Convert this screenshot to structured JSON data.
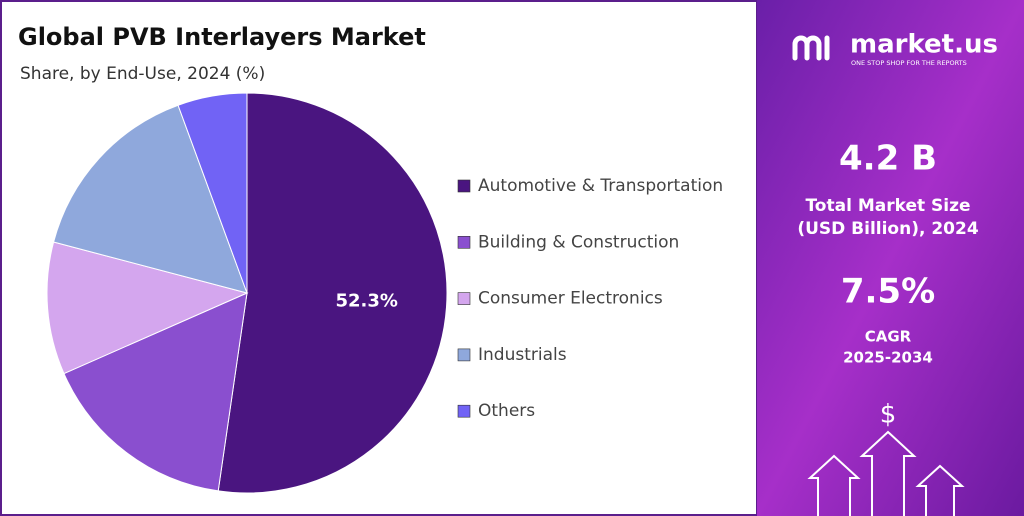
{
  "chart_data": {
    "type": "pie",
    "title": "Global PVB Interlayers Market",
    "subtitle": "Share, by End-Use, 2024 (%)",
    "categories": [
      "Automotive & Transportation",
      "Building & Construction",
      "Consumer Electronics",
      "Industrials",
      "Others"
    ],
    "values": [
      52.3,
      16.1,
      10.7,
      15.3,
      5.6
    ],
    "value_labels": [
      "52.3%",
      null,
      null,
      null,
      null
    ],
    "colors": [
      "#4a1580",
      "#8a4fcf",
      "#d4a6ee",
      "#8fa8dc",
      "#7163f5"
    ],
    "legend": "right"
  },
  "sidebar": {
    "logo": "market.us",
    "tagline": "ONE STOP SHOP FOR THE REPORTS",
    "market_size": "4.2 B",
    "market_size_label": [
      "Total Market Size",
      "(USD Billion), 2024"
    ],
    "cagr": "7.5%",
    "cagr_label": [
      "CAGR",
      "2025-2034"
    ],
    "icon": "$"
  }
}
